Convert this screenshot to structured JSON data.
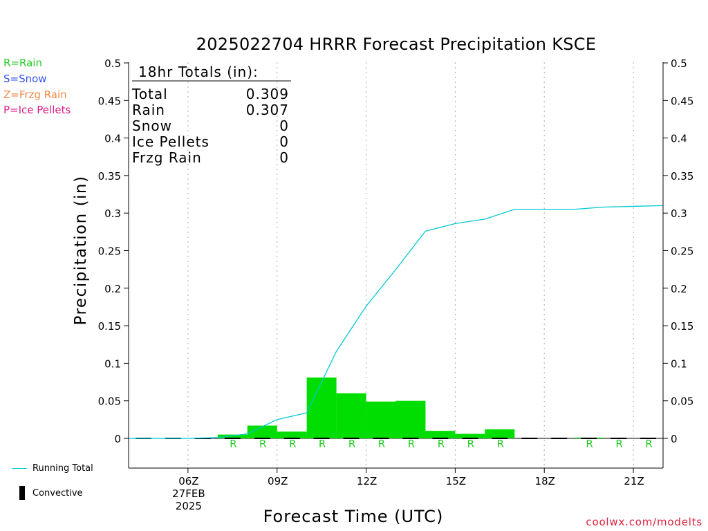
{
  "title": "2025022704 HRRR Forecast Precipitation KSCE",
  "legend": {
    "rain": {
      "label": "R=Rain",
      "color": "#22cc22"
    },
    "snow": {
      "label": "S=Snow",
      "color": "#3355ee"
    },
    "frzg": {
      "label": "Z=Frzg Rain",
      "color": "#ee8844"
    },
    "ice": {
      "label": "P=Ice Pellets",
      "color": "#e0208a"
    }
  },
  "bottom_legend": {
    "running_total": "Running Total",
    "convective": "Convective"
  },
  "credit": "coolwx.com/modelts",
  "totals": {
    "header": "18hr Totals (in):",
    "rows": [
      {
        "label": "Total",
        "value": "0.309"
      },
      {
        "label": "Rain",
        "value": "0.307"
      },
      {
        "label": "Snow",
        "value": "0"
      },
      {
        "label": "Ice Pellets",
        "value": "0"
      },
      {
        "label": "Frzg Rain",
        "value": "0"
      }
    ]
  },
  "chart_data": {
    "type": "bar",
    "title": "2025022704 HRRR Forecast Precipitation KSCE",
    "xlabel": "Forecast Time (UTC)",
    "ylabel": "Precipitation (in)",
    "ylim": [
      -0.05,
      0.5
    ],
    "yticks": [
      0,
      0.05,
      0.1,
      0.15,
      0.2,
      0.25,
      0.3,
      0.35,
      0.4,
      0.45,
      0.5
    ],
    "ytick_labels": [
      "0",
      "0.05",
      "0.1",
      "0.15",
      "0.2",
      "0.25",
      "0.3",
      "0.35",
      "0.4",
      "0.45",
      "0.5"
    ],
    "xlim": [
      4,
      22
    ],
    "xticks": [
      {
        "hour": 6,
        "label": "06Z",
        "sub": [
          "27FEB",
          "2025"
        ]
      },
      {
        "hour": 9,
        "label": "09Z"
      },
      {
        "hour": 12,
        "label": "12Z"
      },
      {
        "hour": 15,
        "label": "15Z"
      },
      {
        "hour": 18,
        "label": "18Z"
      },
      {
        "hour": 21,
        "label": "21Z"
      }
    ],
    "hours": [
      5,
      6,
      7,
      8,
      9,
      10,
      11,
      12,
      13,
      14,
      15,
      16,
      17,
      18,
      19,
      20,
      21,
      22
    ],
    "series": [
      {
        "name": "Rain",
        "color": "#00dd00",
        "values": [
          0,
          0,
          0,
          0.005,
          0.017,
          0.009,
          0.081,
          0.06,
          0.049,
          0.05,
          0.01,
          0.006,
          0.012,
          0,
          0,
          0.001,
          0,
          0
        ]
      },
      {
        "name": "Running Total",
        "color": "#00c8d2",
        "values": [
          0,
          0,
          0.001,
          0.006,
          0.025,
          0.034,
          0.116,
          0.176,
          0.225,
          0.276,
          0.286,
          0.292,
          0.305,
          0.305,
          0.305,
          0.308,
          0.309,
          0.31
        ]
      }
    ],
    "convective": [
      0,
      0,
      0,
      0,
      0,
      0,
      0,
      0,
      0,
      0,
      0,
      0,
      0,
      0,
      0,
      0,
      0,
      0
    ],
    "precip_type_markers": [
      "",
      "",
      "",
      "R",
      "R",
      "R",
      "R",
      "R",
      "R",
      "R",
      "R",
      "R",
      "R",
      "",
      "",
      "R",
      "R",
      "R"
    ],
    "grid": true
  }
}
